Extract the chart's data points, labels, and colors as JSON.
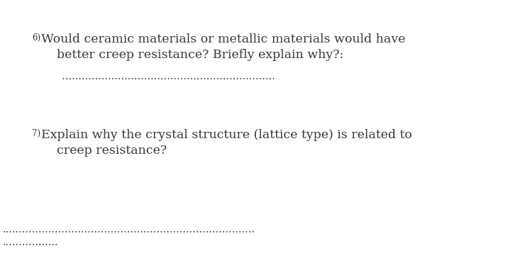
{
  "background_color": "#ffffff",
  "q6_number": "6)",
  "q6_line1": "Would ceramic materials or metallic materials would have",
  "q6_line2": "    better creep resistance? Briefly explain why?:",
  "q6_dots": "  .................................................................",
  "q7_number": "7)",
  "q7_line1": "Explain why the crystal structure (lattice type) is related to",
  "q7_line2": "    creep resistance?",
  "dots_bottom1": ".............................................................................",
  "dots_bottom2": ".................",
  "text_color": "#3a3a3a",
  "number_fontsize": 8.5,
  "text_fontsize": 12.5,
  "dots_fontsize": 10.5
}
